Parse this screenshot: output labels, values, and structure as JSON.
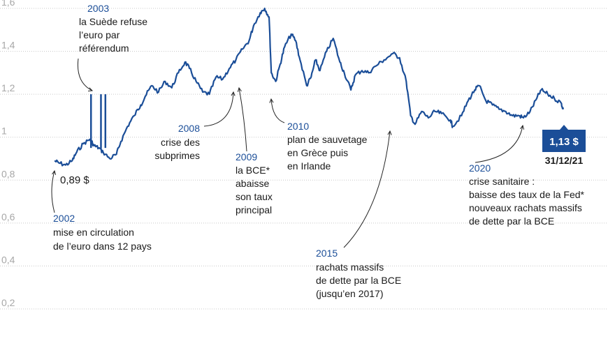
{
  "chart_data": {
    "type": "line",
    "title": "",
    "xlabel": "",
    "ylabel": "",
    "ylim": [
      0.2,
      1.6
    ],
    "yticks": [
      "1,6",
      "1,4",
      "1,2",
      "1",
      "0,8",
      "0,6",
      "0,4",
      "0,2"
    ],
    "grid": true,
    "line_color": "#1b4e98",
    "grid_color": "#c8c8c8",
    "series": [
      {
        "x": [
          1999.0,
          1999.2,
          1999.5,
          1999.8,
          2000.0,
          2000.3,
          2000.6,
          2000.8,
          2001.0,
          2001.2,
          2001.5,
          2001.8,
          2002.0,
          2002.3,
          2002.6,
          2002.9,
          2003.1,
          2003.4,
          2003.7,
          2004.0,
          2004.3,
          2004.6,
          2004.9,
          2005.1,
          2005.4,
          2005.7,
          2006.0,
          2006.3,
          2006.6,
          2006.9,
          2007.2,
          2007.5,
          2007.8,
          2008.0,
          2008.3,
          2008.5,
          2008.7,
          2008.8,
          2009.0,
          2009.2,
          2009.4,
          2009.7,
          2009.9,
          2010.1,
          2010.4,
          2010.6,
          2010.8,
          2011.0,
          2011.3,
          2011.6,
          2011.9,
          2012.1,
          2012.4,
          2012.6,
          2012.9,
          2013.2,
          2013.5,
          2013.9,
          2014.3,
          2014.6,
          2014.9,
          2015.1,
          2015.3,
          2015.6,
          2015.9,
          2016.2,
          2016.5,
          2016.9,
          2017.0,
          2017.4,
          2017.7,
          2018.0,
          2018.2,
          2018.5,
          2018.8,
          2019.1,
          2019.4,
          2019.7,
          2020.0,
          2020.2,
          2020.5,
          2020.8,
          2021.0,
          2021.3,
          2021.6,
          2021.9,
          2022.0
        ],
        "y": [
          0.89,
          0.88,
          0.87,
          0.89,
          0.93,
          0.97,
          0.99,
          0.96,
          0.95,
          0.93,
          0.9,
          0.92,
          0.98,
          1.05,
          1.1,
          1.15,
          1.19,
          1.24,
          1.21,
          1.26,
          1.23,
          1.3,
          1.35,
          1.32,
          1.26,
          1.21,
          1.2,
          1.28,
          1.27,
          1.32,
          1.36,
          1.41,
          1.45,
          1.52,
          1.58,
          1.6,
          1.56,
          1.3,
          1.26,
          1.34,
          1.42,
          1.48,
          1.45,
          1.36,
          1.24,
          1.28,
          1.36,
          1.31,
          1.4,
          1.46,
          1.35,
          1.3,
          1.22,
          1.29,
          1.31,
          1.3,
          1.33,
          1.36,
          1.39,
          1.37,
          1.26,
          1.1,
          1.06,
          1.12,
          1.09,
          1.12,
          1.11,
          1.08,
          1.05,
          1.1,
          1.17,
          1.22,
          1.24,
          1.17,
          1.15,
          1.13,
          1.12,
          1.1,
          1.1,
          1.09,
          1.12,
          1.18,
          1.22,
          1.2,
          1.18,
          1.16,
          1.13
        ]
      }
    ],
    "spikes": [
      {
        "x": 2000.65,
        "y": 1.2
      },
      {
        "x": 2001.1,
        "y": 1.2
      },
      {
        "x": 2001.3,
        "y": 1.2
      }
    ],
    "annotations": [
      {
        "year": "2002",
        "lines": [
          "mise en circulation",
          "de l’euro dans 12 pays"
        ]
      },
      {
        "year": "2003",
        "lines": [
          "la Suède refuse",
          "l’euro par",
          "référendum"
        ]
      },
      {
        "year": "2008",
        "lines": [
          "crise des",
          "subprimes"
        ]
      },
      {
        "year": "2009",
        "lines": [
          "la BCE*",
          "abaisse",
          "son taux",
          "principal"
        ]
      },
      {
        "year": "2010",
        "lines": [
          "plan de sauvetage",
          "en Grèce puis",
          "en Irlande"
        ]
      },
      {
        "year": "2015",
        "lines": [
          "rachats massifs",
          "de dette par la BCE",
          "(jusqu’en 2017)"
        ]
      },
      {
        "year": "2020",
        "lines": [
          "crise sanitaire :",
          "baisse des taux de la Fed*",
          "nouveaux rachats massifs",
          "de dette par la BCE"
        ]
      }
    ],
    "start_value_label": "0,89 $",
    "end_value_label": "1,13 $",
    "end_date_label": "31/12/21"
  }
}
